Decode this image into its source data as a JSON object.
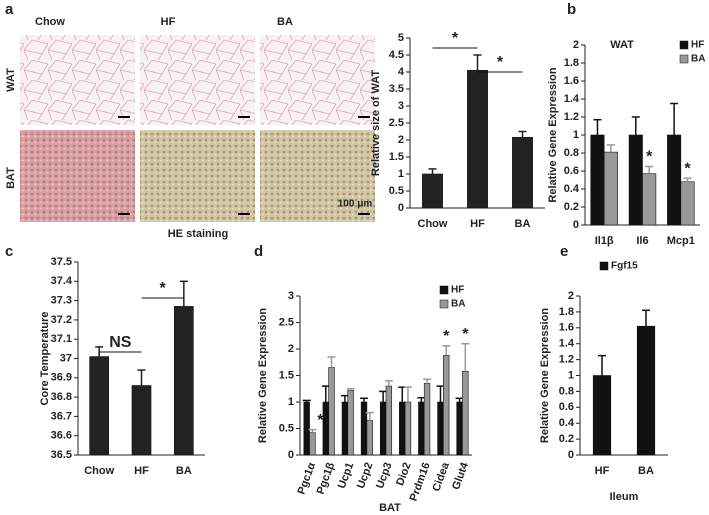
{
  "panels": [
    "a",
    "b",
    "c",
    "d",
    "e"
  ],
  "histology": {
    "columns": [
      "Chow",
      "HF",
      "BA"
    ],
    "rows": [
      "WAT",
      "BAT"
    ],
    "scale_bar": "100 μm",
    "caption": "HE staining"
  },
  "chart_data": [
    {
      "type": "bar",
      "ylabel": "Relative size of  WAT",
      "categories": [
        "Chow",
        "HF",
        "BA"
      ],
      "series": [
        {
          "color": "#222222",
          "values": [
            1.0,
            4.05,
            2.08
          ],
          "errors": [
            0.15,
            0.45,
            0.17
          ]
        }
      ],
      "ylim": [
        0,
        5
      ],
      "yticks": [
        0,
        0.5,
        1,
        1.5,
        2,
        2.5,
        3,
        3.5,
        4,
        4.5,
        5
      ],
      "annotations": [
        "*",
        "*"
      ]
    },
    {
      "type": "bar",
      "title": "WAT",
      "ylabel": "Relative Gene Expression",
      "categories": [
        "Il1β",
        "Il6",
        "Mcp1"
      ],
      "series": [
        {
          "name": "HF",
          "color": "#111111",
          "values": [
            1,
            1,
            1
          ],
          "errors": [
            0.17,
            0.2,
            0.35
          ]
        },
        {
          "name": "BA",
          "color": "#999999",
          "values": [
            0.81,
            0.57,
            0.48
          ],
          "errors": [
            0.08,
            0.08,
            0.04
          ]
        }
      ],
      "ylim": [
        0,
        2
      ],
      "yticks": [
        0,
        0.2,
        0.4,
        0.6,
        0.8,
        1,
        1.2,
        1.4,
        1.6,
        1.8,
        2
      ],
      "annotations": [
        "*",
        "*"
      ]
    },
    {
      "type": "bar",
      "ylabel": "Core  Temperature",
      "categories": [
        "Chow",
        "HF",
        "BA"
      ],
      "series": [
        {
          "color": "#222222",
          "values": [
            37.01,
            36.86,
            37.27
          ],
          "errors": [
            0.05,
            0.08,
            0.13
          ]
        }
      ],
      "ylim": [
        36.5,
        37.5
      ],
      "yticks": [
        36.5,
        36.6,
        36.7,
        36.8,
        36.9,
        37,
        37.1,
        37.2,
        37.3,
        37.4,
        37.5
      ],
      "annotations": [
        "NS",
        "*"
      ]
    },
    {
      "type": "bar",
      "xlabel": "BAT",
      "ylabel": "Relative Gene Expression",
      "categories": [
        "Pgc1α",
        "Pgc1β",
        "Ucp1",
        "Ucp2",
        "Ucp3",
        "Dio2",
        "Prdm16",
        "Cidea",
        "Glut4"
      ],
      "series": [
        {
          "name": "HF",
          "color": "#111111",
          "values": [
            1,
            1,
            1,
            1,
            1,
            1,
            1,
            1,
            1
          ],
          "errors": [
            0.03,
            0.3,
            0.12,
            0.07,
            0.2,
            0.28,
            0.08,
            0.3,
            0.07
          ]
        },
        {
          "name": "BA",
          "color": "#999999",
          "values": [
            0.42,
            1.65,
            1.22,
            0.65,
            1.3,
            1.0,
            1.35,
            1.88,
            1.58
          ],
          "errors": [
            0.06,
            0.2,
            0.03,
            0.15,
            0.1,
            0.28,
            0.08,
            0.18,
            0.52
          ]
        }
      ],
      "ylim": [
        0,
        3
      ],
      "yticks": [
        0,
        0.5,
        1,
        1.5,
        2,
        2.5,
        3
      ],
      "annotations": [
        "*",
        "*",
        "*"
      ]
    },
    {
      "type": "bar",
      "xlabel": "Ileum",
      "ylabel": "Relative Gene Expression",
      "categories": [
        "HF",
        "BA"
      ],
      "series": [
        {
          "name": "Fgf15",
          "color": "#111111",
          "values": [
            1.0,
            1.62
          ],
          "errors": [
            0.25,
            0.2
          ]
        }
      ],
      "ylim": [
        0,
        2
      ],
      "yticks": [
        0,
        0.2,
        0.4,
        0.6,
        0.8,
        1,
        1.2,
        1.4,
        1.6,
        1.8,
        2
      ],
      "annotations": []
    }
  ]
}
